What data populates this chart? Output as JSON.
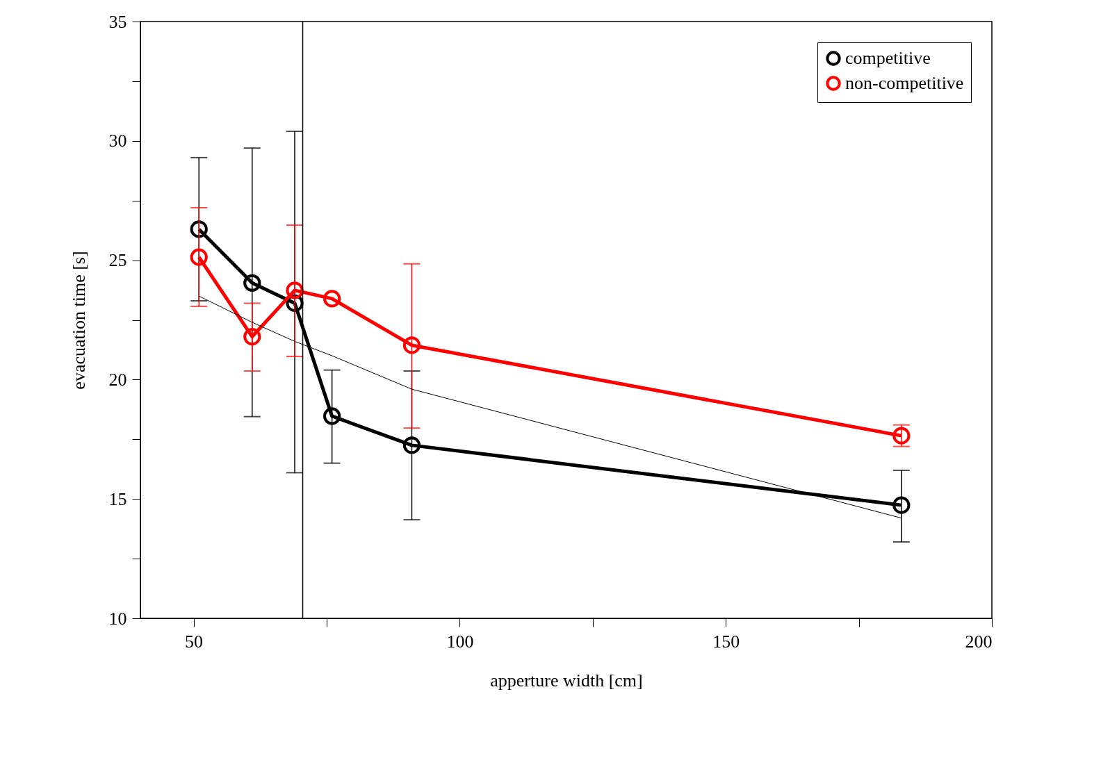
{
  "chart_data": {
    "type": "line",
    "xlabel": "apperture width [cm]",
    "ylabel": "evacuation time [s]",
    "xlim": [
      40,
      200
    ],
    "ylim": [
      10,
      35
    ],
    "xticks": [
      50,
      {
        "value": 75,
        "label": null
      },
      100,
      {
        "value": 125,
        "label": null
      },
      150,
      {
        "value": 175,
        "label": null
      },
      200
    ],
    "yticks": [
      10,
      {
        "value": 12.5,
        "label": null
      },
      15,
      {
        "value": 17.5,
        "label": null
      },
      20,
      {
        "value": 22.5,
        "label": null
      },
      25,
      {
        "value": 27.5,
        "label": null
      },
      30,
      {
        "value": 32.5,
        "label": null
      },
      35
    ],
    "grid": false,
    "legend": "top right",
    "marker": "circle",
    "line_style": "solid",
    "series": [
      {
        "name": "competitive",
        "color": "#000000",
        "x": [
          51,
          61,
          69,
          76,
          91,
          183
        ],
        "values": [
          26.3,
          24.05,
          23.2,
          18.47,
          17.25,
          14.74
        ],
        "errors": [
          [
            23.3,
            29.3
          ],
          [
            18.45,
            29.7
          ],
          [
            16.1,
            30.4
          ],
          [
            16.5,
            20.4
          ],
          [
            14.13,
            20.36
          ],
          [
            13.2,
            16.2
          ]
        ]
      },
      {
        "name": "non-competitive",
        "color": "#ff0000",
        "x": [
          51,
          61,
          69,
          76,
          91,
          183
        ],
        "values": [
          25.13,
          21.8,
          23.74,
          23.39,
          21.44,
          17.65
        ],
        "errors": [
          [
            23.07,
            27.2
          ],
          [
            20.36,
            23.2
          ],
          [
            20.97,
            26.47
          ],
          null,
          [
            17.97,
            24.85
          ],
          [
            17.2,
            18.1
          ]
        ]
      },
      {
        "type": "line",
        "color": "#000000",
        "marker": "none",
        "x": [
          51,
          61,
          69,
          76,
          91,
          183
        ],
        "values": [
          23.5,
          22.4,
          21.6,
          21.0,
          19.6,
          14.2
        ]
      }
    ],
    "ref_lines": [
      {
        "axis": "x",
        "value": 70.5,
        "color": "#000000"
      }
    ]
  }
}
